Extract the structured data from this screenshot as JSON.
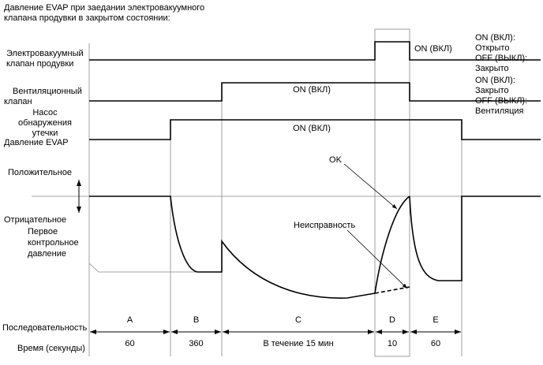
{
  "title": [
    "Давление EVAP при заедании электровакуумного",
    "клапана продувки в закрытом состоянии:"
  ],
  "signals": [
    {
      "label": [
        "Электровакуумный",
        "клапан продувки"
      ],
      "state": "ON (ВКЛ)",
      "legend": [
        "ON (ВКЛ):",
        "Открыто",
        "OFF (ВЫКЛ):",
        "Закрыто"
      ]
    },
    {
      "label": [
        "Вентиляционный",
        "клапан"
      ],
      "state": "ON (ВКЛ)",
      "legend": [
        "ON (ВКЛ):",
        "Закрыто",
        "OFF (ВЫКЛ):",
        "Вентиляция"
      ]
    },
    {
      "label": [
        "Насос",
        "обнаружения",
        "утечки"
      ],
      "state": "ON (ВКЛ)"
    }
  ],
  "pressure": {
    "label": "Давление EVAP",
    "positive": "Положительное",
    "negative": "Отрицательное",
    "reference": [
      "Первое",
      "контрольное",
      "давление"
    ],
    "ok": "OK",
    "fault": "Неисправность"
  },
  "sequence": {
    "label": "Последовательность",
    "time_label": "Время (секунды)",
    "phases": [
      {
        "name": "A",
        "time": "60"
      },
      {
        "name": "B",
        "time": "360"
      },
      {
        "name": "C",
        "time": "В течение 15 мин"
      },
      {
        "name": "D",
        "time": "10"
      },
      {
        "name": "E",
        "time": "60"
      }
    ]
  }
}
